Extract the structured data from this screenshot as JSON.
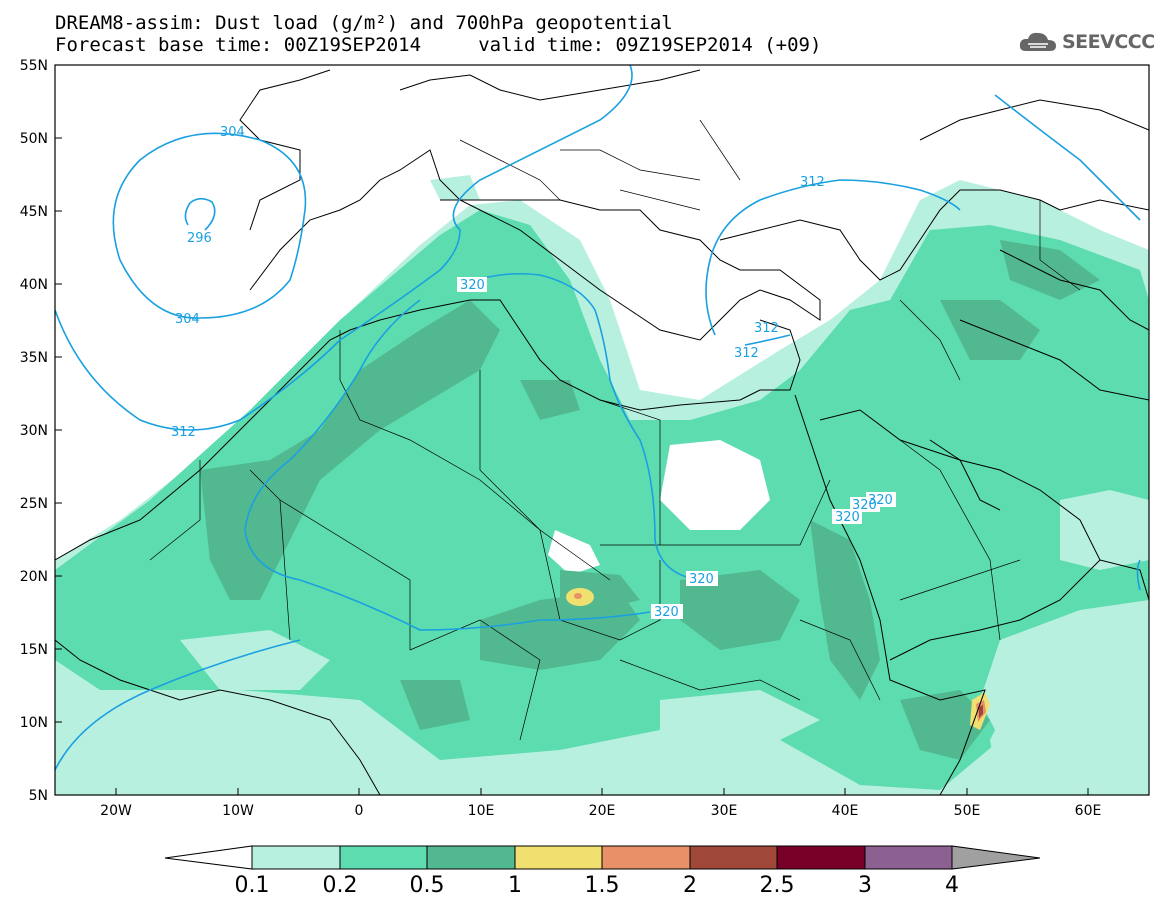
{
  "header": {
    "title_line1": "DREAM8-assim: Dust load (g/m²) and 700hPa geopotential",
    "title_line2": "Forecast base time: 00Z19SEP2014     valid time: 09Z19SEP2014 (+09)",
    "logo_text": "SEEVCCC",
    "logo_icon": "cloud-icon"
  },
  "map": {
    "lat_labels": [
      "55N",
      "50N",
      "45N",
      "40N",
      "35N",
      "30N",
      "25N",
      "20N",
      "15N",
      "10N",
      "5N"
    ],
    "lon_labels": [
      "20W",
      "10W",
      "0",
      "10E",
      "20E",
      "30E",
      "40E",
      "50E",
      "60E"
    ],
    "geopotential_labels": [
      "304",
      "296",
      "304",
      "312",
      "320",
      "312",
      "312",
      "320",
      "320",
      "320",
      "312",
      "320",
      "320"
    ],
    "colors": {
      "contour": "#1aa0e0",
      "dust_01": "#b8f0e0",
      "dust_02": "#5ddcb0",
      "dust_05": "#52b890",
      "dust_1": "#f0e070",
      "dust_15": "#e89068",
      "dust_2": "#a04838",
      "dust_25": "#780028",
      "dust_3": "#8c6090",
      "dust_4": "#a0a0a0"
    }
  },
  "colorbar": {
    "ticks": [
      "0.1",
      "0.2",
      "0.5",
      "1",
      "1.5",
      "2",
      "2.5",
      "3",
      "4"
    ],
    "colors": [
      "#ffffff",
      "#b8f0e0",
      "#5ddcb0",
      "#52b890",
      "#f0e070",
      "#e89068",
      "#a04838",
      "#780028",
      "#8c6090",
      "#a0a0a0"
    ]
  }
}
